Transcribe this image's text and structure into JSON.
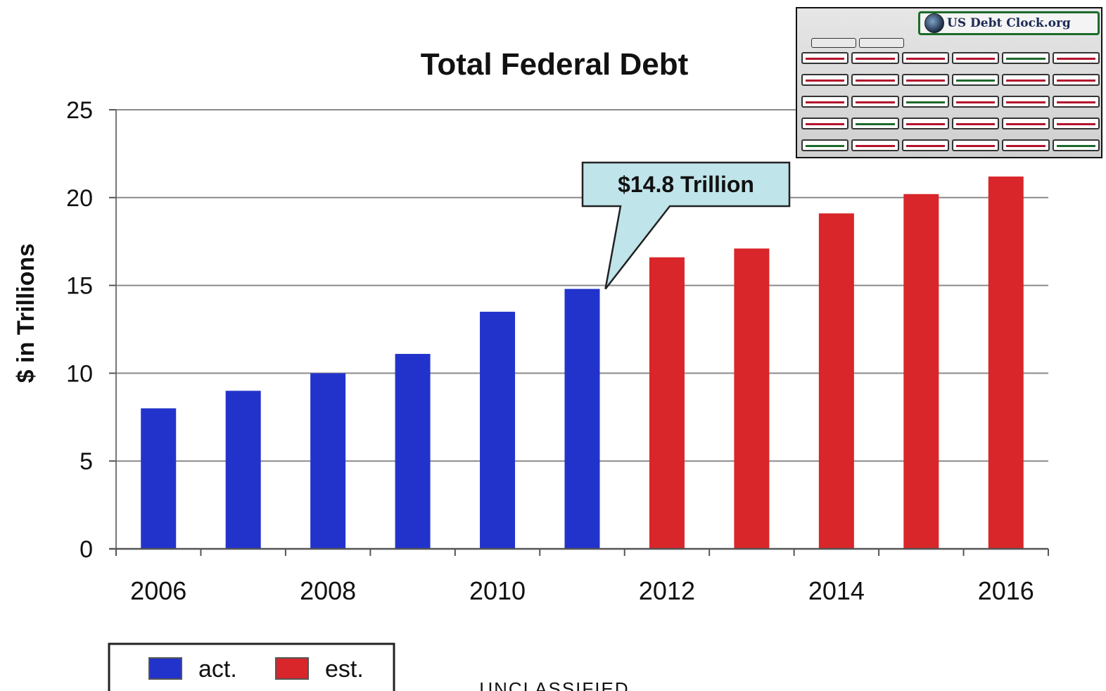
{
  "chart_data": {
    "type": "bar",
    "title": "Total Federal Debt",
    "ylabel": "$ in Trillions",
    "xlabel": "",
    "ylim": [
      0,
      25
    ],
    "yticks": [
      "0",
      "5",
      "10",
      "15",
      "20",
      "25"
    ],
    "categories": [
      2006,
      2007,
      2008,
      2009,
      2010,
      2011,
      2012,
      2013,
      2014,
      2015,
      2016
    ],
    "x_tick_labels": [
      "2006",
      "2008",
      "2010",
      "2012",
      "2014",
      "2016"
    ],
    "series": [
      {
        "name": "act.",
        "color": "#2233cc",
        "values": [
          8.0,
          9.0,
          10.0,
          11.1,
          13.5,
          14.8,
          null,
          null,
          null,
          null,
          null
        ]
      },
      {
        "name": "est.",
        "color": "#d8262a",
        "values": [
          null,
          null,
          null,
          null,
          null,
          null,
          16.6,
          17.1,
          19.1,
          20.2,
          21.2
        ]
      }
    ],
    "annotation": {
      "text": "$14.8 Trillion",
      "category": 2011,
      "value": 14.8
    },
    "legend": {
      "position": "bottom-left"
    },
    "grid": {
      "y": true,
      "x": false
    }
  },
  "footer": "UNCLASSIFIED",
  "inset": {
    "title": "US Debt Clock.org",
    "logo_icon": "seal-icon"
  }
}
